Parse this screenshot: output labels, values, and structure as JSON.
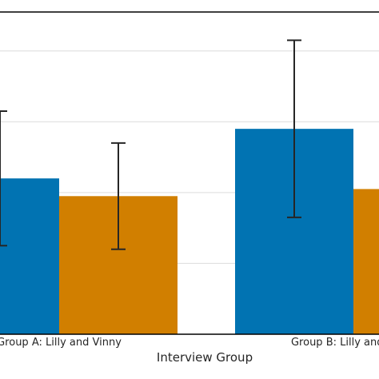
{
  "chart_data": {
    "type": "bar",
    "title": "",
    "xlabel": "Interview Group",
    "ylabel": "",
    "categories": [
      "Group A: Lilly and Vinny",
      "Group B: Lilly and Vinny"
    ],
    "series": [
      {
        "color": "#0173b2",
        "values": [
          2.2,
          2.9
        ],
        "error": [
          0.95,
          1.25
        ]
      },
      {
        "color": "#d17f00",
        "values": [
          1.95,
          2.05
        ],
        "error": [
          0.75,
          null
        ]
      }
    ],
    "ylim": [
      0,
      4.55
    ],
    "grid": true,
    "grid_values": [
      1,
      2,
      3,
      4
    ],
    "legend": false
  }
}
